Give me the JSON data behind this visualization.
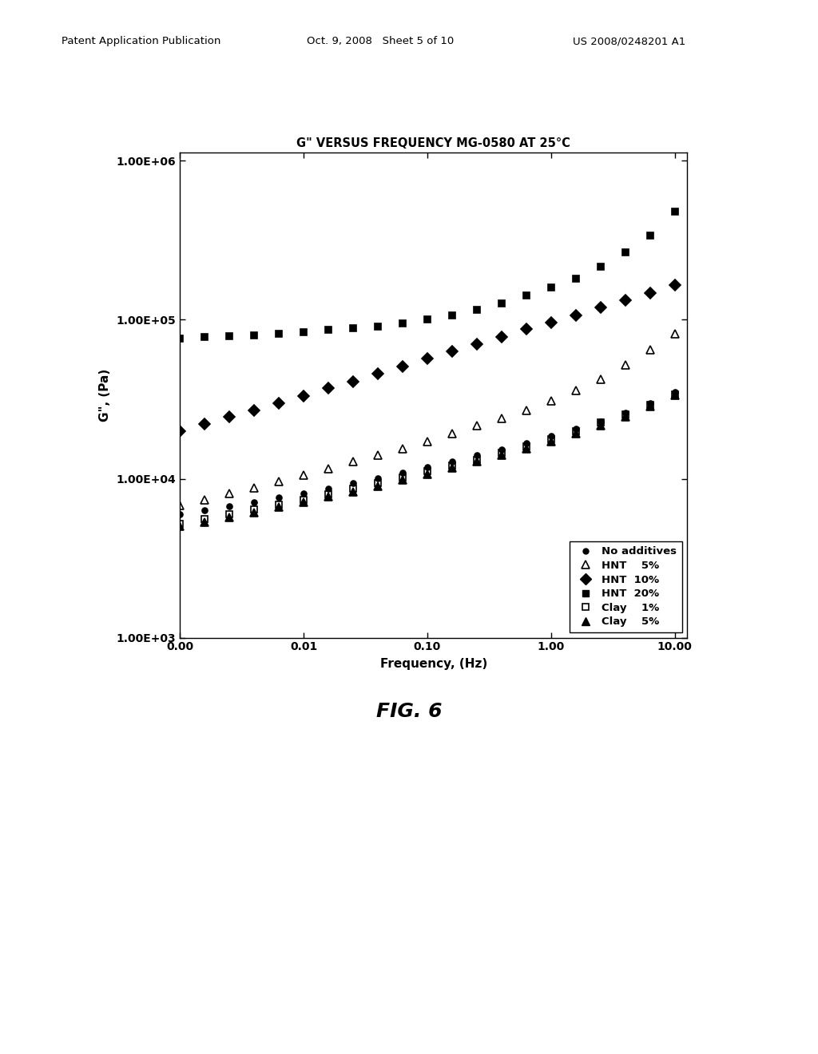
{
  "title": "G\" VERSUS FREQUENCY MG-0580 AT 25°C",
  "xlabel": "Frequency, (Hz)",
  "ylabel": "G\", (Pa)",
  "fig_label": "FIG. 6",
  "xticks": [
    0.001,
    0.01,
    0.1,
    1.0,
    10.0
  ],
  "xtick_labels": [
    "0.00",
    "0.01",
    "0.10",
    "1.00",
    "10.00"
  ],
  "ytick_labels": [
    "1.00E+03",
    "1.00E+04",
    "1.00E+05",
    "1.00E+06"
  ],
  "series": {
    "no_additives": {
      "label": "No additives",
      "marker": "o",
      "filled": true,
      "markersize": 5,
      "x": [
        0.001,
        0.00158,
        0.00251,
        0.00398,
        0.00631,
        0.01,
        0.01585,
        0.02512,
        0.03981,
        0.0631,
        0.1,
        0.1585,
        0.2512,
        0.3981,
        0.631,
        1.0,
        1.585,
        2.512,
        3.981,
        6.31,
        10.0
      ],
      "y": [
        6000,
        6300,
        6700,
        7100,
        7600,
        8100,
        8700,
        9400,
        10100,
        10900,
        11800,
        12800,
        14000,
        15300,
        16800,
        18500,
        20500,
        23000,
        26000,
        30000,
        35000
      ]
    },
    "hnt_5": {
      "label": "HNT    5%",
      "marker": "^",
      "filled": false,
      "markersize": 7,
      "x": [
        0.001,
        0.00158,
        0.00251,
        0.00398,
        0.00631,
        0.01,
        0.01585,
        0.02512,
        0.03981,
        0.0631,
        0.1,
        0.1585,
        0.2512,
        0.3981,
        0.631,
        1.0,
        1.585,
        2.512,
        3.981,
        6.31,
        10.0
      ],
      "y": [
        6800,
        7400,
        8100,
        8800,
        9600,
        10500,
        11600,
        12800,
        14000,
        15500,
        17200,
        19200,
        21500,
        24000,
        27000,
        31000,
        36000,
        42000,
        52000,
        65000,
        82000
      ]
    },
    "hnt_10": {
      "label": "HNT  10%",
      "marker": "D",
      "filled": true,
      "markersize": 7,
      "x": [
        0.001,
        0.00158,
        0.00251,
        0.00398,
        0.00631,
        0.01,
        0.01585,
        0.02512,
        0.03981,
        0.0631,
        0.1,
        0.1585,
        0.2512,
        0.3981,
        0.631,
        1.0,
        1.585,
        2.512,
        3.981,
        6.31,
        10.0
      ],
      "y": [
        20000,
        22000,
        24500,
        27000,
        30000,
        33000,
        37000,
        41000,
        46000,
        51000,
        57000,
        63000,
        70000,
        78000,
        87000,
        96000,
        107000,
        119000,
        132000,
        148000,
        165000
      ]
    },
    "hnt_20": {
      "label": "HNT  20%",
      "marker": "s",
      "filled": true,
      "markersize": 6,
      "x": [
        0.001,
        0.00158,
        0.00251,
        0.00398,
        0.00631,
        0.01,
        0.01585,
        0.02512,
        0.03981,
        0.0631,
        0.1,
        0.1585,
        0.2512,
        0.3981,
        0.631,
        1.0,
        1.585,
        2.512,
        3.981,
        6.31,
        10.0
      ],
      "y": [
        76000,
        78000,
        79000,
        80000,
        82000,
        84000,
        86000,
        88000,
        91000,
        95000,
        100000,
        107000,
        116000,
        127000,
        142000,
        160000,
        182000,
        215000,
        265000,
        340000,
        480000
      ]
    },
    "clay_1": {
      "label": "Clay    1%",
      "marker": "s",
      "filled": false,
      "markersize": 6,
      "x": [
        0.001,
        0.00158,
        0.00251,
        0.00398,
        0.00631,
        0.01,
        0.01585,
        0.02512,
        0.03981,
        0.0631,
        0.1,
        0.1585,
        0.2512,
        0.3981,
        0.631,
        1.0,
        1.585,
        2.512,
        3.981,
        6.31,
        10.0
      ],
      "y": [
        5200,
        5600,
        6000,
        6400,
        6900,
        7400,
        8000,
        8700,
        9400,
        10200,
        11100,
        12100,
        13200,
        14500,
        16000,
        17800,
        20000,
        22500,
        25500,
        29000,
        34000
      ]
    },
    "clay_5": {
      "label": "Clay    5%",
      "marker": "^",
      "filled": true,
      "markersize": 7,
      "x": [
        0.001,
        0.00158,
        0.00251,
        0.00398,
        0.00631,
        0.01,
        0.01585,
        0.02512,
        0.03981,
        0.0631,
        0.1,
        0.1585,
        0.2512,
        0.3981,
        0.631,
        1.0,
        1.585,
        2.512,
        3.981,
        6.31,
        10.0
      ],
      "y": [
        5000,
        5300,
        5700,
        6100,
        6600,
        7100,
        7700,
        8300,
        9000,
        9800,
        10700,
        11700,
        12800,
        14000,
        15500,
        17200,
        19200,
        21500,
        24500,
        28500,
        33500
      ]
    }
  }
}
